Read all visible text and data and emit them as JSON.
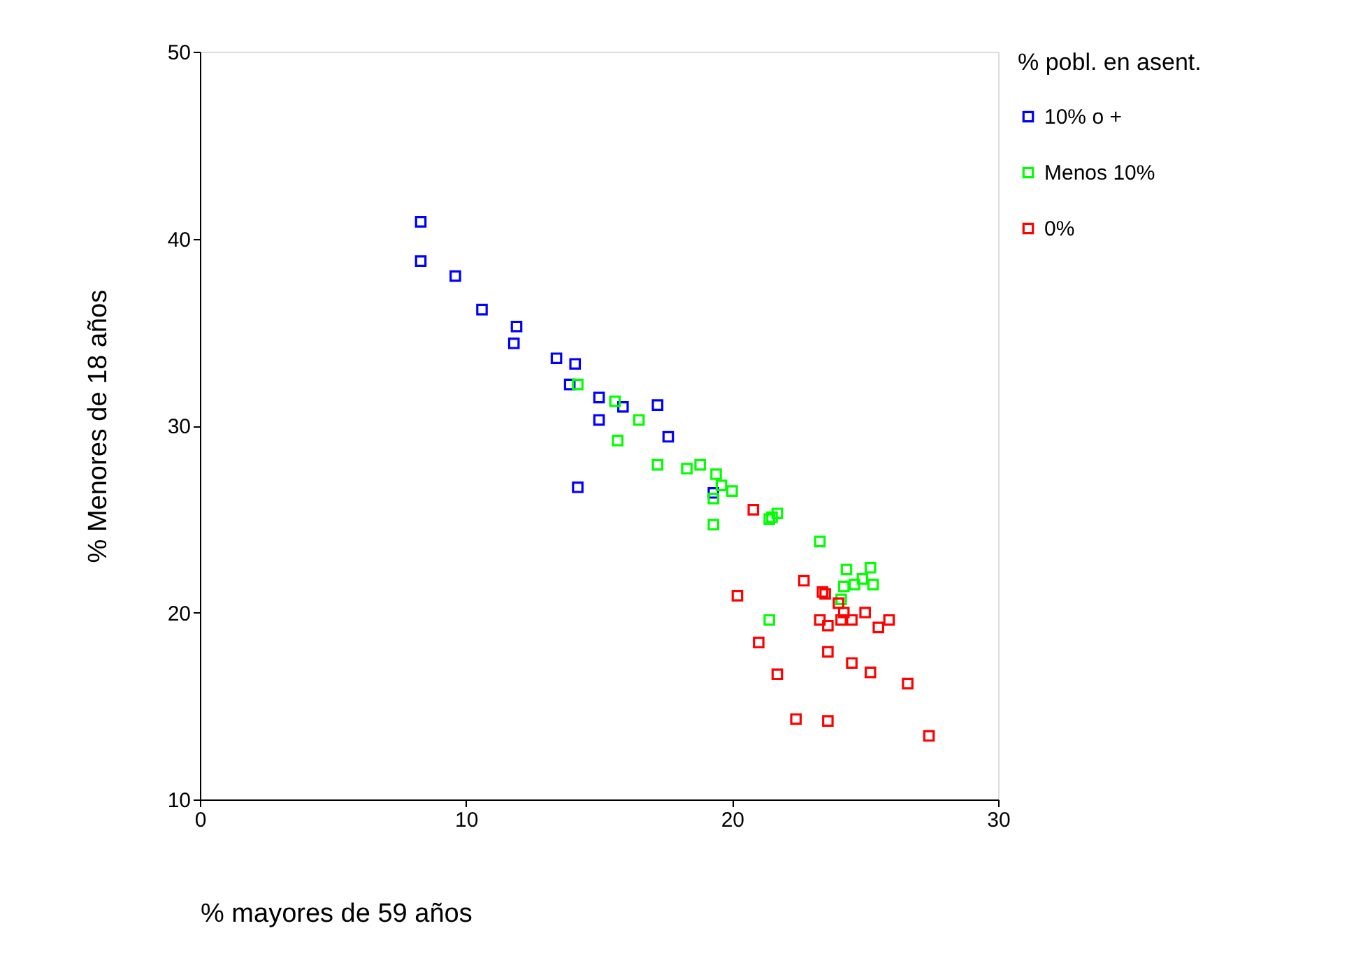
{
  "chart_data": {
    "type": "scatter",
    "xlabel": "% mayores de 59 años",
    "ylabel": "% Menores de 18 años",
    "legend_title": "% pobl. en asent.",
    "xlim": [
      0,
      30
    ],
    "ylim": [
      10,
      50
    ],
    "xticks": [
      0,
      10,
      20,
      30
    ],
    "yticks": [
      10,
      20,
      30,
      40,
      50
    ],
    "grid": false,
    "legend": "right",
    "marker": "square",
    "series": [
      {
        "name": "10% o +",
        "color": "#0000ff",
        "x": [
          8.3,
          8.3,
          9.6,
          10.6,
          11.9,
          11.8,
          13.4,
          14.1,
          13.9,
          15.0,
          15.9,
          17.2,
          15.0,
          17.6,
          14.2,
          19.3
        ],
        "values": [
          40.9,
          38.8,
          38.0,
          36.2,
          35.3,
          34.4,
          33.6,
          33.3,
          32.2,
          31.5,
          31.0,
          31.1,
          30.3,
          29.4,
          26.7,
          26.4
        ]
      },
      {
        "name": "Menos 10%",
        "color": "#00ff00",
        "x": [
          14.2,
          15.6,
          16.5,
          15.7,
          17.2,
          18.3,
          18.8,
          19.4,
          19.6,
          20.0,
          19.3,
          19.3,
          21.4,
          21.5,
          21.7,
          23.3,
          24.3,
          25.2,
          24.9,
          24.6,
          24.2,
          25.3,
          24.1,
          21.4
        ],
        "values": [
          32.2,
          31.3,
          30.3,
          29.2,
          27.9,
          27.7,
          27.9,
          27.4,
          26.8,
          26.5,
          26.1,
          24.7,
          25.0,
          25.1,
          25.3,
          23.8,
          22.3,
          22.4,
          21.8,
          21.5,
          21.4,
          21.5,
          20.7,
          19.6
        ]
      },
      {
        "name": "0%",
        "color": "#ff0000",
        "x": [
          20.8,
          22.7,
          20.2,
          23.4,
          23.5,
          24.0,
          24.2,
          25.0,
          23.3,
          23.6,
          24.1,
          24.5,
          25.9,
          25.5,
          21.0,
          23.6,
          24.5,
          25.2,
          21.7,
          26.6,
          22.4,
          23.6,
          27.4
        ],
        "values": [
          25.5,
          21.7,
          20.9,
          21.1,
          21.0,
          20.5,
          20.0,
          20.0,
          19.6,
          19.3,
          19.6,
          19.6,
          19.6,
          19.2,
          18.4,
          17.9,
          17.3,
          16.8,
          16.7,
          16.2,
          14.3,
          14.2,
          13.4
        ]
      }
    ]
  }
}
